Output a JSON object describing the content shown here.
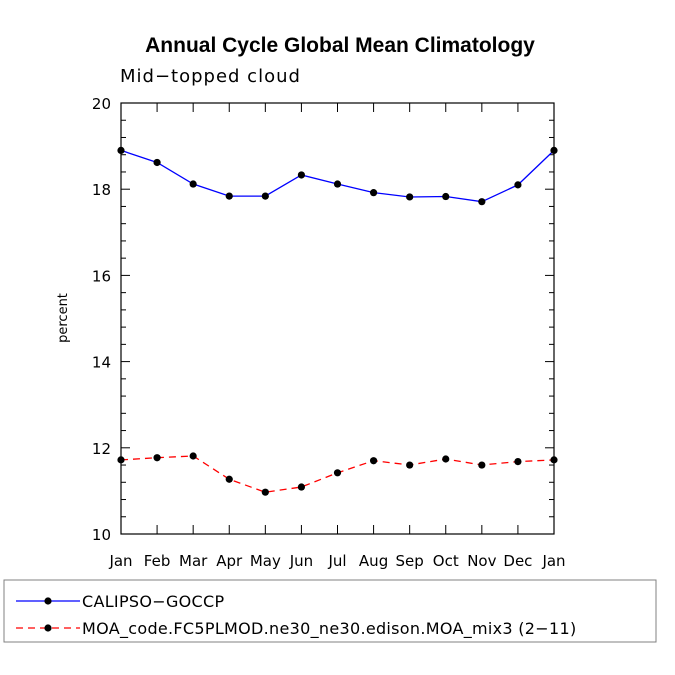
{
  "chart_data": {
    "type": "line",
    "title": "Annual Cycle Global Mean Climatology",
    "subtitle": "Mid−topped cloud",
    "xlabel": "",
    "ylabel": "percent",
    "categories": [
      "Jan",
      "Feb",
      "Mar",
      "Apr",
      "May",
      "Jun",
      "Jul",
      "Aug",
      "Sep",
      "Oct",
      "Nov",
      "Dec",
      "Jan"
    ],
    "ylim": [
      10,
      20
    ],
    "yticks": [
      10,
      12,
      14,
      16,
      18,
      20
    ],
    "legend_position": "bottom",
    "series": [
      {
        "name": "CALIPSO−GOCCP",
        "color": "#0000ff",
        "dash": "solid",
        "values": [
          18.9,
          18.62,
          18.12,
          17.84,
          17.84,
          18.33,
          18.12,
          17.92,
          17.82,
          17.83,
          17.71,
          18.1,
          18.9
        ]
      },
      {
        "name": "MOA_code.FC5PLMOD.ne30_ne30.edison.MOA_mix3 (2−11)",
        "color": "#ff0000",
        "dash": "dashed",
        "values": [
          11.72,
          11.77,
          11.81,
          11.27,
          10.97,
          11.09,
          11.42,
          11.7,
          11.6,
          11.74,
          11.6,
          11.68,
          11.72
        ]
      }
    ]
  }
}
